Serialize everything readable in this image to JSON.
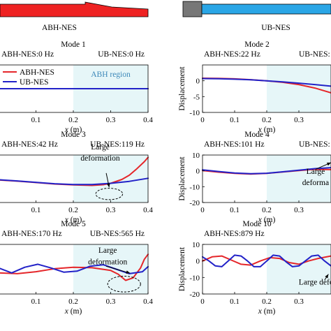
{
  "header": {
    "left_name": "ABH-NES",
    "right_name": "UB-NES"
  },
  "colors": {
    "abh": "#e5262a",
    "ub": "#2222c8",
    "region": "#e6f6f8",
    "beam_red": "#e22",
    "beam_blue": "#2aa6e6",
    "mass_gray": "#777777"
  },
  "chart_data": [
    {
      "type": "line",
      "id": "mode1",
      "title": "Mode 1",
      "subtitle_abh": "ABH-NES:0 Hz",
      "subtitle_ub": "UB-NES:0 Hz",
      "xlabel": "x (m)",
      "ylabel": "",
      "xlim": [
        0,
        0.4
      ],
      "ylim": [
        -1,
        1
      ],
      "xticks": [
        "0.1",
        "0.2",
        "0.3",
        "0.4"
      ],
      "yticks": [],
      "region": {
        "x0": 0.2,
        "x1": 0.4,
        "label": "ABH region"
      },
      "legend": [
        "ABH-NES",
        "UB-NES"
      ],
      "series": [
        {
          "name": "ABH-NES",
          "x": [
            0,
            0.4
          ],
          "y": [
            0,
            0
          ]
        },
        {
          "name": "UB-NES",
          "x": [
            0,
            0.4
          ],
          "y": [
            0,
            0
          ]
        }
      ]
    },
    {
      "type": "line",
      "id": "mode2",
      "title": "Mode 2",
      "subtitle_abh": "ABH-NES:22 Hz",
      "subtitle_ub": "UB-NES:",
      "xlabel": "x (m)",
      "ylabel": "Displacement",
      "xlim": [
        0,
        0.4
      ],
      "ylim": [
        -10,
        5
      ],
      "xticks": [
        "0",
        "0.1",
        "0.2",
        "0.3"
      ],
      "yticks": [
        "0",
        "-5",
        "-10"
      ],
      "region": {
        "x0": 0.2,
        "x1": 0.4,
        "label": ""
      },
      "legend": [],
      "series": [
        {
          "name": "ABH-NES",
          "x": [
            0,
            0.05,
            0.1,
            0.15,
            0.2,
            0.25,
            0.3,
            0.35,
            0.4
          ],
          "y": [
            0.8,
            0.75,
            0.6,
            0.35,
            0.0,
            -0.5,
            -1.2,
            -2.3,
            -3.8
          ]
        },
        {
          "name": "UB-NES",
          "x": [
            0,
            0.05,
            0.1,
            0.15,
            0.2,
            0.25,
            0.3,
            0.35,
            0.4
          ],
          "y": [
            0.7,
            0.65,
            0.5,
            0.3,
            0.0,
            -0.35,
            -0.75,
            -1.2,
            -1.7
          ]
        }
      ]
    },
    {
      "type": "line",
      "id": "mode3",
      "title": "Mode 3",
      "subtitle_abh": "ABH-NES:42 Hz",
      "subtitle_ub": "UB-NES:119 Hz",
      "xlabel": "x (m)",
      "ylabel": "",
      "xlim": [
        0,
        0.4
      ],
      "ylim": [
        -10,
        10
      ],
      "xticks": [
        "0.1",
        "0.2",
        "0.3",
        "0.4"
      ],
      "yticks": [],
      "region": {
        "x0": 0.2,
        "x1": 0.4,
        "label": ""
      },
      "annotation": {
        "line1": "Large",
        "line2": "deformation"
      },
      "legend": [],
      "series": [
        {
          "name": "ABH-NES",
          "x": [
            0,
            0.05,
            0.1,
            0.15,
            0.2,
            0.25,
            0.28,
            0.3,
            0.33,
            0.35,
            0.37,
            0.39,
            0.4
          ],
          "y": [
            -0.5,
            -1.0,
            -1.6,
            -2.2,
            -2.6,
            -2.8,
            -2.5,
            -1.9,
            -0.3,
            1.5,
            4.2,
            7.2,
            9.0
          ]
        },
        {
          "name": "UB-NES",
          "x": [
            0,
            0.05,
            0.1,
            0.15,
            0.2,
            0.25,
            0.3,
            0.35,
            0.4
          ],
          "y": [
            -0.4,
            -0.9,
            -1.5,
            -2.1,
            -2.4,
            -2.4,
            -1.9,
            -1.1,
            0.2
          ]
        }
      ]
    },
    {
      "type": "line",
      "id": "mode4",
      "title": "Mode 4",
      "subtitle_abh": "ABH-NES:101 Hz",
      "subtitle_ub": "UB-NES:",
      "xlabel": "x (m)",
      "ylabel": "Displacement",
      "xlim": [
        0,
        0.4
      ],
      "ylim": [
        -20,
        10
      ],
      "xticks": [
        "0",
        "0.1",
        "0.2",
        "0.3"
      ],
      "yticks": [
        "10",
        "0",
        "-10",
        "-20"
      ],
      "region": {
        "x0": 0.2,
        "x1": 0.4,
        "label": ""
      },
      "annotation": {
        "line1": "Large",
        "line2": "deforma"
      },
      "legend": [],
      "series": [
        {
          "name": "ABH-NES",
          "x": [
            0,
            0.05,
            0.1,
            0.15,
            0.2,
            0.25,
            0.3,
            0.35,
            0.4
          ],
          "y": [
            0.2,
            -0.8,
            -1.6,
            -2.0,
            -1.6,
            -0.7,
            0.2,
            1.0,
            0.8
          ]
        },
        {
          "name": "UB-NES",
          "x": [
            0,
            0.05,
            0.1,
            0.15,
            0.2,
            0.25,
            0.3,
            0.35,
            0.4
          ],
          "y": [
            0.6,
            -0.4,
            -1.4,
            -1.8,
            -1.5,
            -0.6,
            0.4,
            1.4,
            2.0
          ]
        }
      ]
    },
    {
      "type": "line",
      "id": "mode5",
      "title": "Mode 5",
      "subtitle_abh": "ABH-NES:170 Hz",
      "subtitle_ub": "UB-NES:565 Hz",
      "xlabel": "x (m)",
      "ylabel": "",
      "xlim": [
        0,
        0.4
      ],
      "ylim": [
        -10,
        10
      ],
      "xticks": [
        "0.1",
        "0.2",
        "0.3",
        "0.4"
      ],
      "yticks": [],
      "region": {
        "x0": 0.2,
        "x1": 0.4,
        "label": ""
      },
      "annotation": {
        "line1": "Large",
        "line2": "deformation"
      },
      "legend": [],
      "series": [
        {
          "name": "ABH-NES",
          "x": [
            0,
            0.05,
            0.1,
            0.15,
            0.2,
            0.25,
            0.3,
            0.32,
            0.34,
            0.36,
            0.38,
            0.39,
            0.4
          ],
          "y": [
            -1.5,
            -1.8,
            -1.0,
            0.2,
            0.8,
            0.6,
            -0.5,
            -2.0,
            -4.5,
            -3.5,
            0.5,
            4.0,
            6.0
          ]
        },
        {
          "name": "UB-NES",
          "x": [
            0,
            0.035,
            0.07,
            0.105,
            0.14,
            0.175,
            0.21,
            0.245,
            0.28,
            0.315,
            0.35,
            0.385,
            0.4
          ],
          "y": [
            0.5,
            -1.5,
            0.8,
            2.0,
            0.5,
            -1.2,
            -0.8,
            1.2,
            1.8,
            0.0,
            -1.8,
            -1.0,
            1.0
          ]
        }
      ]
    },
    {
      "type": "line",
      "id": "mode10",
      "title": "Mode 10",
      "subtitle_abh": "ABH-NES:879 Hz",
      "subtitle_ub": "",
      "xlabel": "x (m)",
      "ylabel": "Displacement",
      "xlim": [
        0,
        0.4
      ],
      "ylim": [
        -20,
        10
      ],
      "xticks": [
        "0",
        "0.1",
        "0.2",
        "0.3"
      ],
      "yticks": [
        "10",
        "0",
        "-10",
        "-20"
      ],
      "region": {
        "x0": 0.2,
        "x1": 0.4,
        "label": ""
      },
      "annotation": {
        "line1": "Large deformati",
        "line2": ""
      },
      "legend": [],
      "series": [
        {
          "name": "ABH-NES",
          "x": [
            0,
            0.03,
            0.06,
            0.09,
            0.12,
            0.15,
            0.18,
            0.21,
            0.24,
            0.27,
            0.3,
            0.33,
            0.36,
            0.4
          ],
          "y": [
            0.0,
            2.5,
            3.0,
            0.5,
            -2.0,
            -2.5,
            0.0,
            2.0,
            1.5,
            -1.0,
            -2.0,
            0.0,
            1.5,
            3.0
          ]
        },
        {
          "name": "UB-NES",
          "x": [
            0,
            0.02,
            0.04,
            0.06,
            0.08,
            0.1,
            0.12,
            0.14,
            0.16,
            0.18,
            0.2,
            0.22,
            0.24,
            0.26,
            0.28,
            0.3,
            0.32,
            0.34,
            0.36,
            0.38,
            0.4
          ],
          "y": [
            2.5,
            0.0,
            -3.0,
            -3.5,
            0.0,
            3.5,
            3.0,
            0.0,
            -3.5,
            -3.5,
            0.0,
            3.5,
            3.0,
            -0.5,
            -3.5,
            -3.0,
            0.0,
            3.0,
            3.5,
            0.0,
            -3.0
          ]
        }
      ]
    }
  ]
}
